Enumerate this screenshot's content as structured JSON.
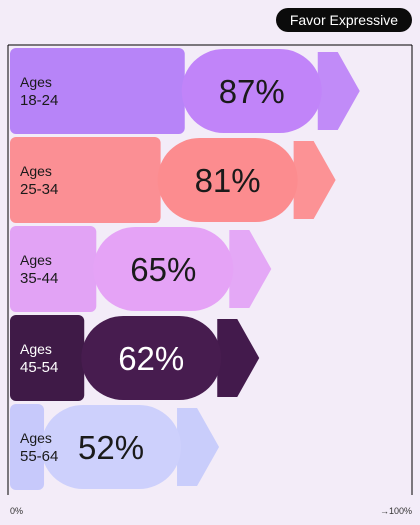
{
  "legend_label": "Favor Expressive",
  "chart_data": {
    "type": "bar",
    "title": "",
    "xlabel": "",
    "ylabel": "",
    "legend": {
      "entries": [
        "Favor Expressive"
      ],
      "placement": "top-right"
    },
    "categories": [
      {
        "line1": "Ages",
        "line2": "18-24"
      },
      {
        "line1": "Ages",
        "line2": "25-34"
      },
      {
        "line1": "Ages",
        "line2": "35-44"
      },
      {
        "line1": "Ages",
        "line2": "45-54"
      },
      {
        "line1": "Ages",
        "line2": "55-64"
      }
    ],
    "series": [
      {
        "values": [
          87,
          81,
          65,
          62,
          52
        ],
        "data_labels": [
          "87%",
          "81%",
          "65%",
          "62%",
          "52%"
        ]
      }
    ],
    "xlim": [
      0,
      100
    ],
    "tick_labels": {
      "start": "0%",
      "end": "→100%"
    },
    "grid": false,
    "colors": {
      "bars": [
        "#b784f8",
        "#fb8f94",
        "#e2a3f5",
        "#3f1a47",
        "#c7c9fb"
      ],
      "pills": [
        "#c184f9",
        "#fc8c8f",
        "#e5a3f6",
        "#471c4f",
        "#cdd0fc"
      ],
      "arrows": [
        "#c18bf8",
        "#fc9295",
        "#e4a8f6",
        "#431a4c",
        "#c9cdfb"
      ],
      "text_light": "#1a1a1a",
      "text_dark": "#ffffff",
      "frame": "#000000",
      "background": "#f3ecf8"
    }
  }
}
